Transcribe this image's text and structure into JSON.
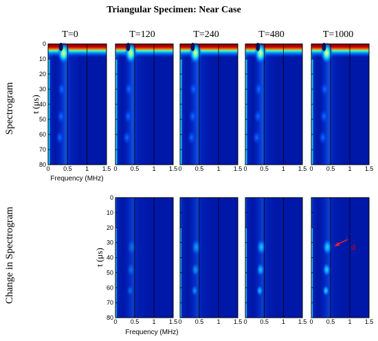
{
  "figure": {
    "title": "Triangular  Specimen:  Near Case",
    "rows": [
      {
        "label": "Spectrogram",
        "ylabel": "t (μs)",
        "xlabel": "Frequency (MHz)",
        "panels": [
          "T=0",
          "T=120",
          "T=240",
          "T=480",
          "T=1000"
        ]
      },
      {
        "label": "Change in Spectrogram",
        "ylabel": "t (μs)",
        "xlabel": "Frequency (MHz)",
        "panels": [
          "",
          "",
          "",
          "",
          ""
        ]
      }
    ],
    "annotation": {
      "text": "d",
      "color": "#e00000"
    }
  },
  "chart_data": [
    {
      "type": "heatmap",
      "row": "Spectrogram",
      "xlabel": "Frequency (MHz)",
      "ylabel": "t (μs)",
      "xlim": [
        0,
        1.5
      ],
      "ylim": [
        0,
        80
      ],
      "y_inverted": true,
      "x_ticks": [
        "0",
        "0.5",
        "1",
        "1.5"
      ],
      "y_ticks": [
        "0",
        "10",
        "20",
        "30",
        "40",
        "50",
        "60",
        "70",
        "80"
      ],
      "panels": [
        "T=0",
        "T=120",
        "T=240",
        "T=480",
        "T=1000"
      ],
      "colormap": [
        "#00008f",
        "#0020ff",
        "#00d0ff",
        "#80ff80",
        "#ffff00",
        "#ff4000",
        "#800000"
      ]
    },
    {
      "type": "heatmap",
      "row": "Change in Spectrogram",
      "xlabel": "Frequency (MHz)",
      "ylabel": "t (μs)",
      "xlim": [
        0,
        1.5
      ],
      "ylim": [
        0,
        80
      ],
      "y_inverted": true,
      "x_ticks": [
        "0",
        "0.5",
        "1",
        "1.5"
      ],
      "y_ticks": [
        "0",
        "10",
        "20",
        "30",
        "40",
        "50",
        "60",
        "70",
        "80"
      ],
      "panels": [
        "T=120",
        "T=240",
        "T=480",
        "T=1000"
      ],
      "annotation": {
        "text": "d",
        "frequency_mhz": 0.4,
        "time_us": 32
      }
    }
  ]
}
